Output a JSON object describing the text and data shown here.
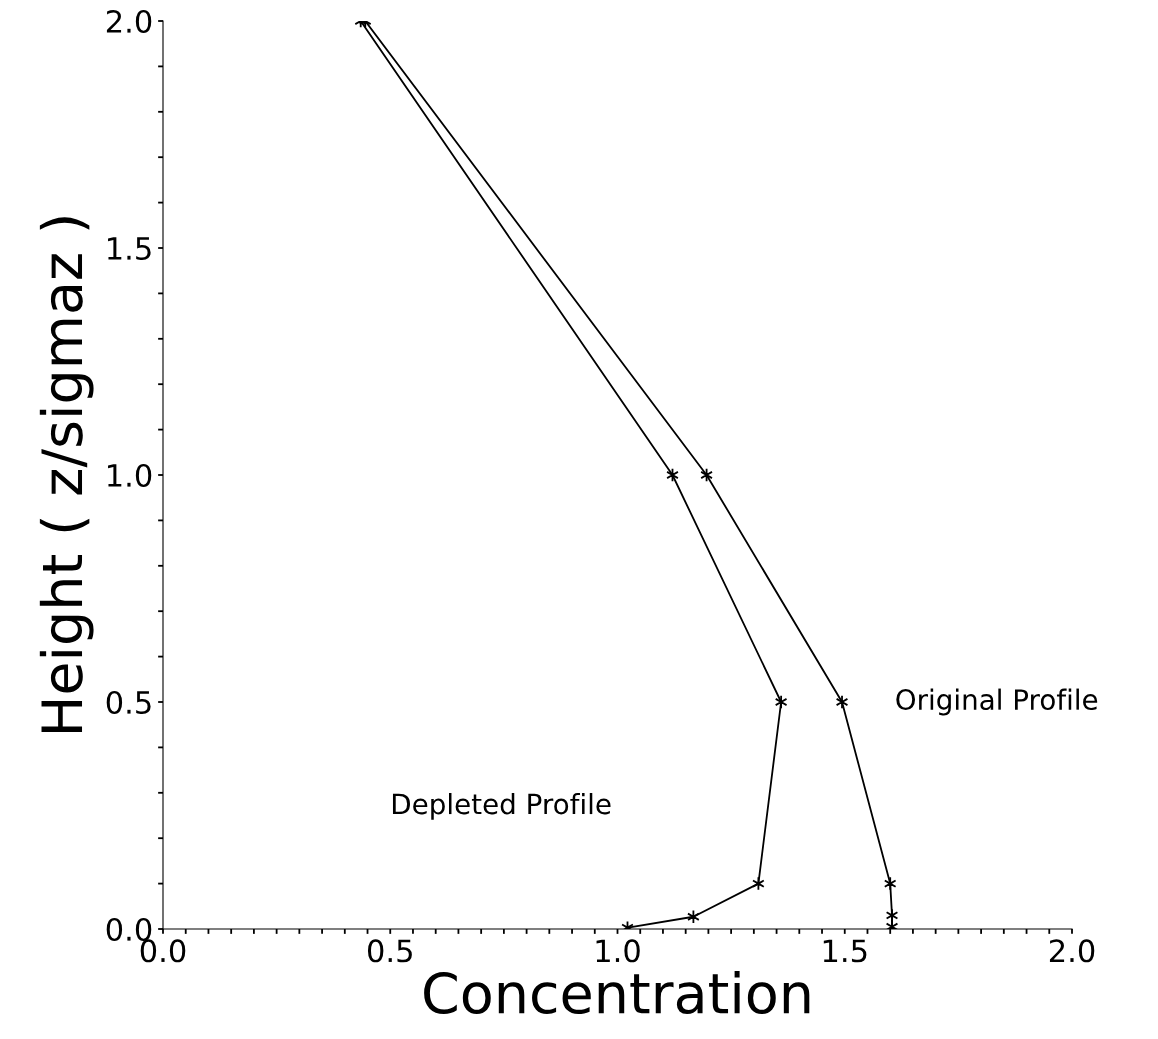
{
  "chart_data": {
    "type": "line",
    "xlabel": "Concentration",
    "ylabel": "Height ( z/sigmaz )",
    "series": [
      {
        "color": "#000000",
        "x": [
          0.445,
          1.196,
          1.494,
          1.6,
          1.604,
          1.604
        ],
        "values": [
          2.0,
          1.0,
          0.5,
          0.1,
          0.03,
          0.005
        ]
      },
      {
        "color": "#000000",
        "x": [
          0.435,
          1.121,
          1.36,
          1.31,
          1.167,
          1.022
        ],
        "values": [
          2.0,
          1.0,
          0.5,
          0.1,
          0.027,
          0.003
        ]
      }
    ],
    "annotations": [
      "Original Profile",
      "Depleted Profile"
    ],
    "xlim": [
      0,
      2.0
    ],
    "ylim": [
      0,
      2.0
    ],
    "xticks": [
      {
        "value": 0,
        "label": "0.0"
      },
      {
        "value": 0.05,
        "label": null
      },
      {
        "value": 0.1,
        "label": null
      },
      {
        "value": 0.15,
        "label": null
      },
      {
        "value": 0.2,
        "label": null
      },
      {
        "value": 0.25,
        "label": null
      },
      {
        "value": 0.3,
        "label": null
      },
      {
        "value": 0.35,
        "label": null
      },
      {
        "value": 0.4,
        "label": null
      },
      {
        "value": 0.45,
        "label": null
      },
      0.5,
      {
        "value": 0.55,
        "label": null
      },
      {
        "value": 0.6,
        "label": null
      },
      {
        "value": 0.65,
        "label": null
      },
      {
        "value": 0.7,
        "label": null
      },
      {
        "value": 0.75,
        "label": null
      },
      {
        "value": 0.8,
        "label": null
      },
      {
        "value": 0.85,
        "label": null
      },
      {
        "value": 0.9,
        "label": null
      },
      {
        "value": 0.95,
        "label": null
      },
      {
        "value": 1,
        "label": "1.0"
      },
      {
        "value": 1.05,
        "label": null
      },
      {
        "value": 1.1,
        "label": null
      },
      {
        "value": 1.15,
        "label": null
      },
      {
        "value": 1.2,
        "label": null
      },
      {
        "value": 1.25,
        "label": null
      },
      {
        "value": 1.3,
        "label": null
      },
      {
        "value": 1.35,
        "label": null
      },
      {
        "value": 1.4,
        "label": null
      },
      {
        "value": 1.45,
        "label": null
      },
      1.5,
      {
        "value": 1.55,
        "label": null
      },
      {
        "value": 1.6,
        "label": null
      },
      {
        "value": 1.65,
        "label": null
      },
      {
        "value": 1.7,
        "label": null
      },
      {
        "value": 1.75,
        "label": null
      },
      {
        "value": 1.8,
        "label": null
      },
      {
        "value": 1.85,
        "label": null
      },
      {
        "value": 1.9,
        "label": null
      },
      {
        "value": 1.95,
        "label": null
      },
      {
        "value": 2,
        "label": "2.0"
      }
    ],
    "yticks": [
      {
        "value": 0,
        "label": "0.0"
      },
      {
        "value": 0.1,
        "label": null
      },
      {
        "value": 0.2,
        "label": null
      },
      {
        "value": 0.3,
        "label": null
      },
      {
        "value": 0.4,
        "label": null
      },
      0.5,
      {
        "value": 0.6,
        "label": null
      },
      {
        "value": 0.7,
        "label": null
      },
      {
        "value": 0.8,
        "label": null
      },
      {
        "value": 0.9,
        "label": null
      },
      {
        "value": 1,
        "label": "1.0"
      },
      {
        "value": 1.1,
        "label": null
      },
      {
        "value": 1.2,
        "label": null
      },
      {
        "value": 1.3,
        "label": null
      },
      {
        "value": 1.4,
        "label": null
      },
      1.5,
      {
        "value": 1.6,
        "label": null
      },
      {
        "value": 1.7,
        "label": null
      },
      {
        "value": 1.8,
        "label": null
      },
      {
        "value": 1.9,
        "label": null
      },
      {
        "value": 2,
        "label": "2.0"
      }
    ],
    "grid": false,
    "marker": "cross",
    "line_style": "solid"
  }
}
